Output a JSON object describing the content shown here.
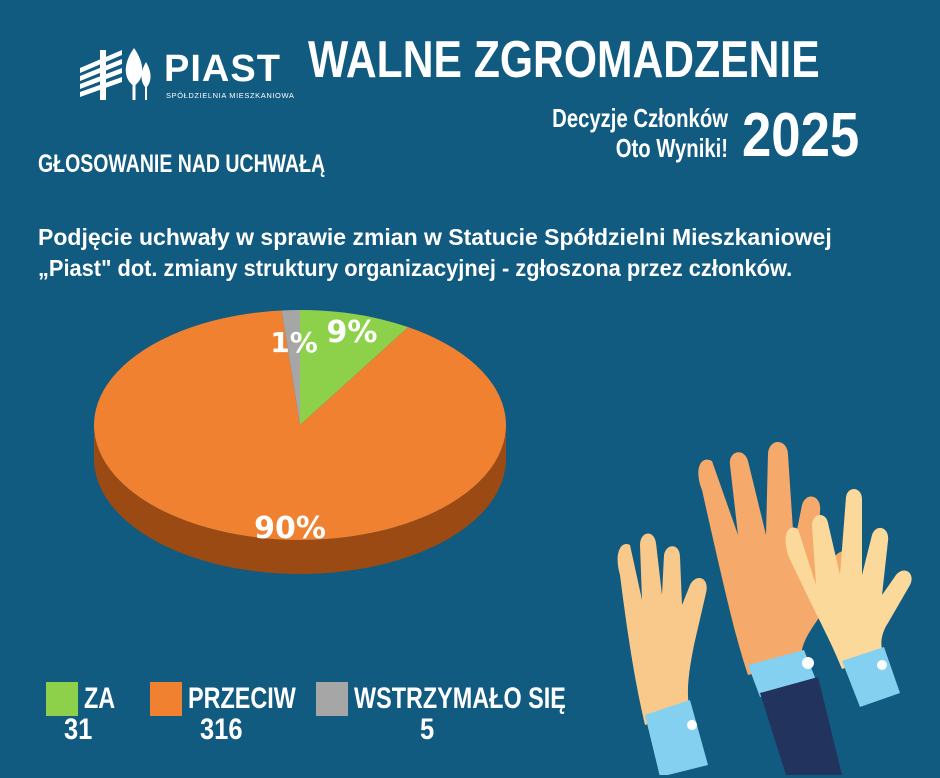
{
  "logo": {
    "name": "PIAST",
    "subtitle": "SPÓŁDZIELNIA MIESZKANIOWA"
  },
  "header": {
    "title": "WALNE ZGROMADZENIE",
    "subtitle_line1": "Decyzje Członków",
    "subtitle_line2": "Oto Wyniki!",
    "year": "2025"
  },
  "section_title": "GŁOSOWANIE NAD UCHWAŁĄ",
  "question": {
    "line1": "Podjęcie uchwały w sprawie zmian w Statucie Spółdzielni Mieszkaniowej",
    "line2": "„Piast\" dot. zmiany struktury organizacyjnej - zgłoszona przez członków."
  },
  "chart_data": {
    "type": "pie",
    "categories": [
      "ZA",
      "PRZECIW",
      "WSTRZYMAŁO SIĘ"
    ],
    "values": [
      31,
      316,
      5
    ],
    "percent_labels": [
      "9%",
      "90%",
      "1%"
    ],
    "colors": [
      "#8dd14a",
      "#ef8130",
      "#a6a6a6"
    ],
    "side_colors": [
      "#5f8f2e",
      "#9a4a12",
      "#6e6e6e"
    ],
    "legend_placement": "bottom-left"
  },
  "legend": [
    {
      "label": "ZA",
      "value": "31"
    },
    {
      "label": "PRZECIW",
      "value": "316"
    },
    {
      "label": "WSTRZYMAŁO SIĘ",
      "value": "5"
    }
  ]
}
